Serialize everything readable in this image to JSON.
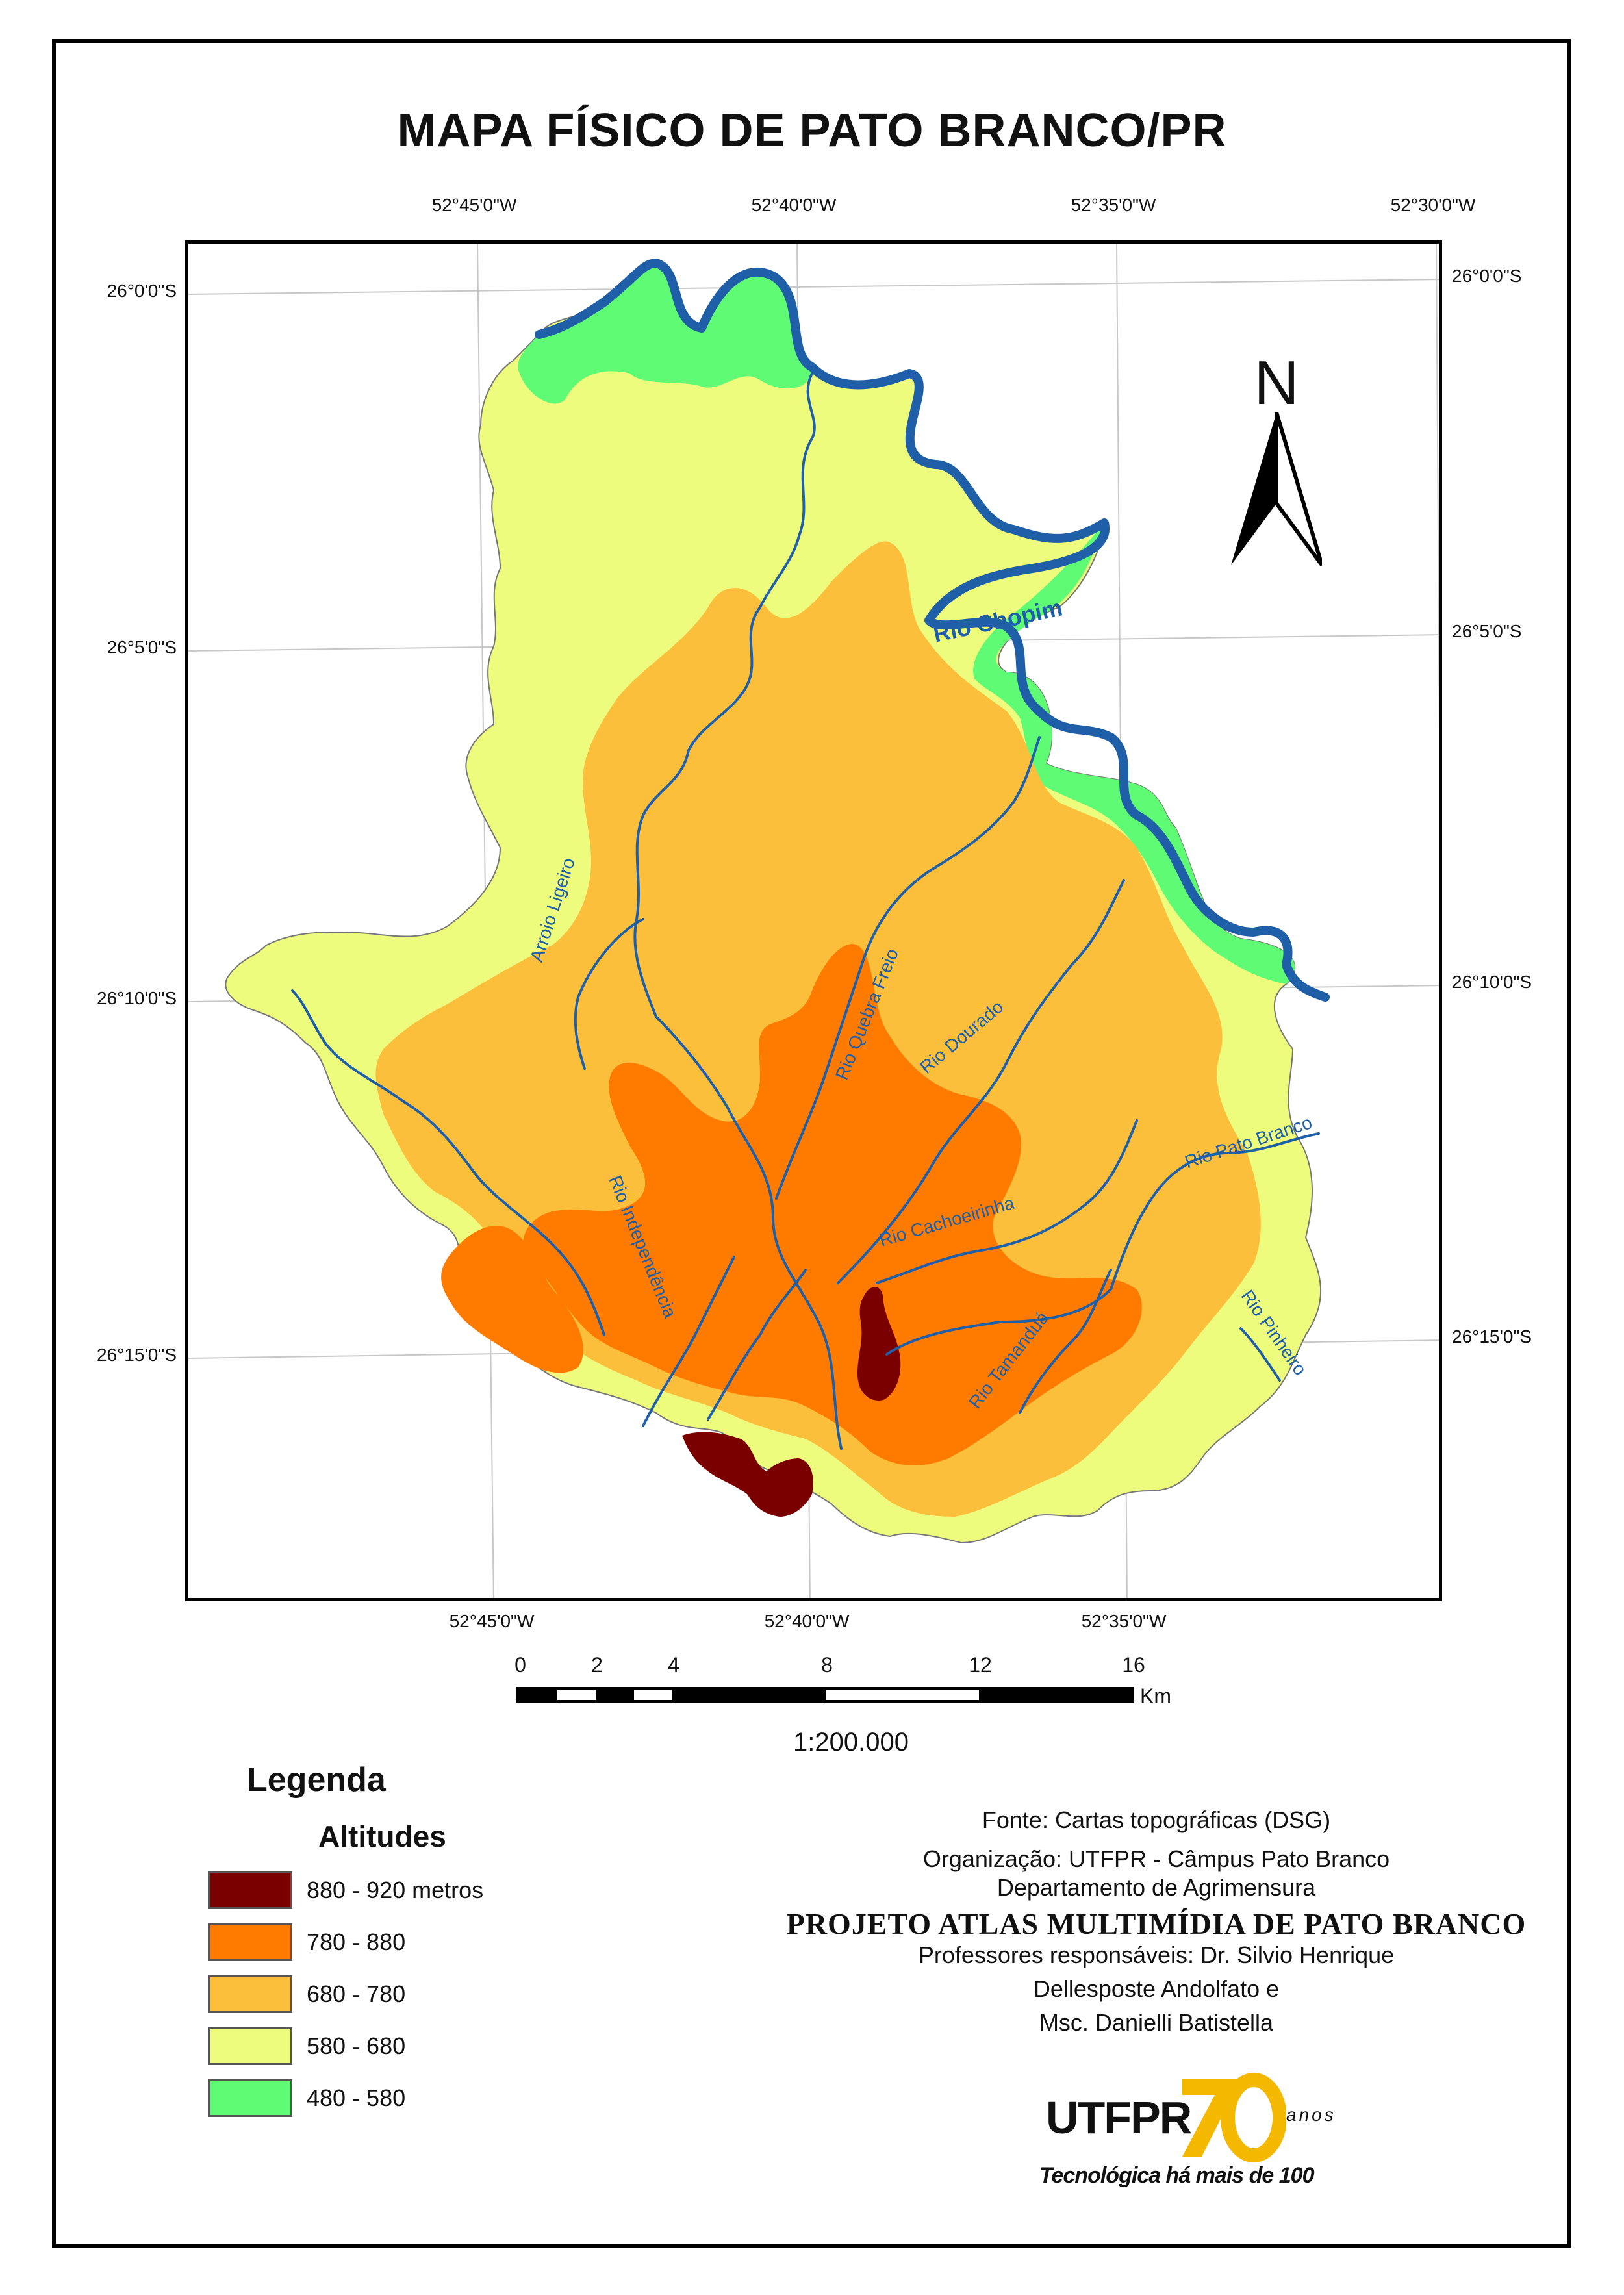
{
  "title": "MAPA FÍSICO DE PATO BRANCO/PR",
  "coordinates": {
    "top": [
      "52°45'0\"W",
      "52°40'0\"W",
      "52°35'0\"W",
      "52°30'0\"W"
    ],
    "bottom": [
      "52°45'0\"W",
      "52°40'0\"W",
      "52°35'0\"W"
    ],
    "left": [
      "26°0'0\"S",
      "26°5'0\"S",
      "26°10'0\"S",
      "26°15'0\"S"
    ],
    "right": [
      "26°0'0\"S",
      "26°5'0\"S",
      "26°10'0\"S",
      "26°15'0\"S"
    ]
  },
  "north_arrow": {
    "letter": "N",
    "icon": "north-arrow-icon"
  },
  "rivers": {
    "chopim": "Rio Chopim",
    "ligeiro": "Arroio Ligeiro",
    "quebra_freio": "Rio Quebra Freio",
    "dourado": "Rio Dourado",
    "pato_branco": "Rio Pato Branco",
    "cachoeirinha": "Rio Cachoeirinha",
    "independencia": "Rio Independência",
    "tamandua": "Rio Tamanduá",
    "pinheiro": "Rio Pinheiro"
  },
  "scale_bar": {
    "labels": [
      "0",
      "2",
      "4",
      "8",
      "12",
      "16"
    ],
    "unit": "Km",
    "ratio": "1:200.000"
  },
  "legend": {
    "title": "Legenda",
    "subtitle": "Altitudes",
    "items": [
      {
        "label": "880 - 920 metros",
        "color": "#7a0000"
      },
      {
        "label": "780 - 880",
        "color": "#ff7b00"
      },
      {
        "label": "680 - 780",
        "color": "#fbbf3c"
      },
      {
        "label": "580 - 680",
        "color": "#eefc7d"
      },
      {
        "label": "480 - 580",
        "color": "#60fb74"
      }
    ]
  },
  "credits": {
    "source": "Fonte: Cartas topográficas (DSG)",
    "organization": "Organização: UTFPR - Câmpus Pato Branco",
    "department": "Departamento de Agrimensura",
    "project": "PROJETO ATLAS MULTIMÍDIA DE PATO BRANCO",
    "professors_1": "Professores responsáveis: Dr. Silvio Henrique",
    "professors_2": "Dellesposte Andolfato e",
    "professors_3": "Msc. Danielli Batistella"
  },
  "logo": {
    "name": "UTFPR",
    "anos": "anos",
    "tagline": "Tecnológica há mais de 100"
  },
  "colors": {
    "river": "#1f5fa8",
    "grid": "#bbbbbb"
  }
}
